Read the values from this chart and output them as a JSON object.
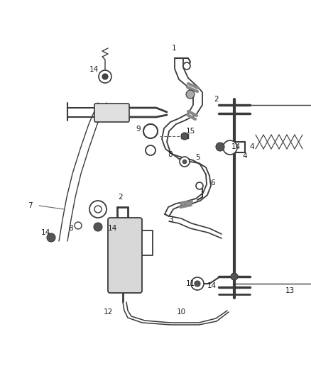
{
  "background_color": "#ffffff",
  "line_color": "#3a3a3a",
  "label_color": "#1a1a1a",
  "fig_w": 4.38,
  "fig_h": 5.33,
  "dpi": 100
}
